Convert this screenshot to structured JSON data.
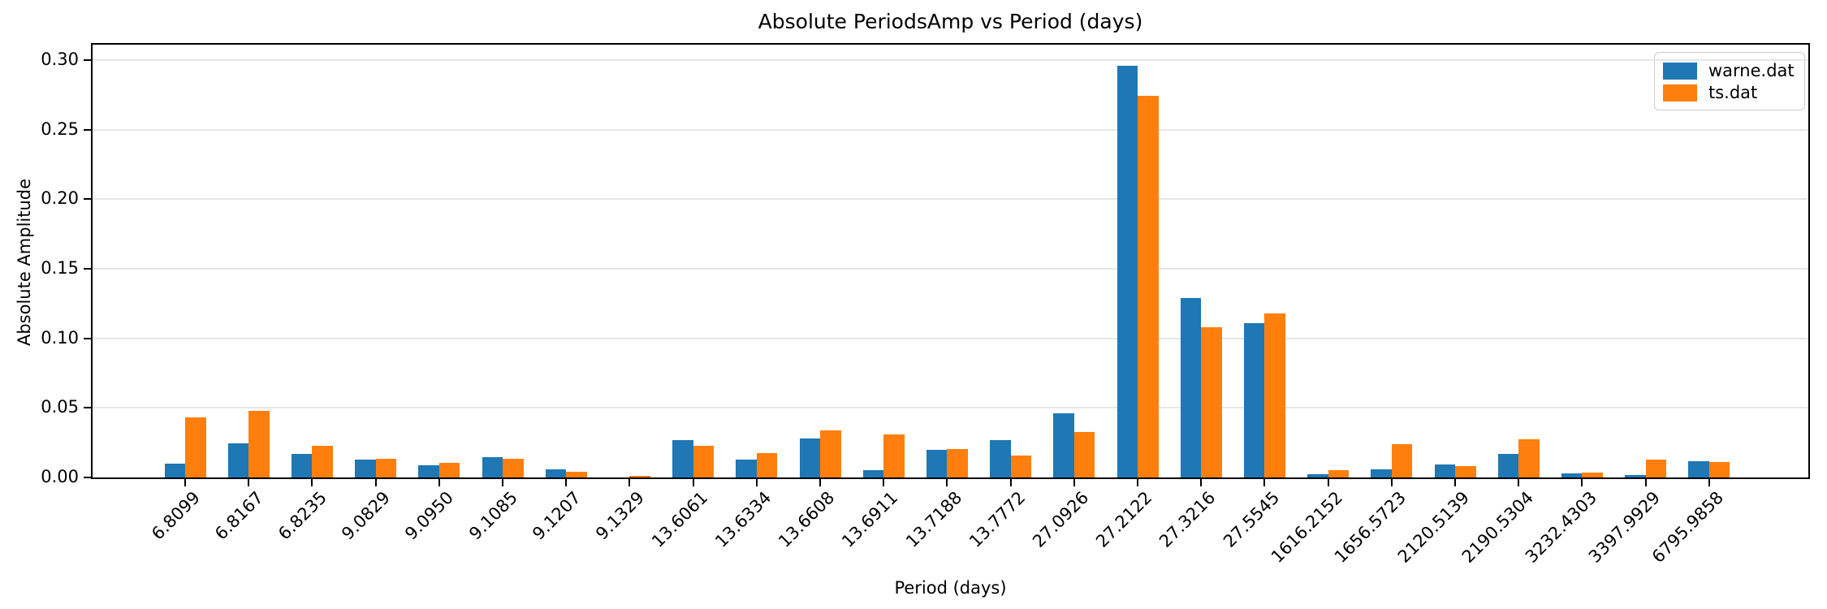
{
  "figure": {
    "background": "#ffffff",
    "spine_color": "#000000",
    "grid_color": "#e6e6e6"
  },
  "chart_data": {
    "type": "bar",
    "title": "Absolute PeriodsAmp vs Period (days)",
    "xlabel": "Period (days)",
    "ylabel": "Absolute Amplitude",
    "ylim": [
      0,
      0.311
    ],
    "yticks": [
      0.0,
      0.05,
      0.1,
      0.15,
      0.2,
      0.25,
      0.3
    ],
    "ytick_labels": [
      "0.00",
      "0.05",
      "0.10",
      "0.15",
      "0.20",
      "0.25",
      "0.30"
    ],
    "grid": "horizontal",
    "legend_position": "upper-right",
    "categories": [
      "6.8099",
      "6.8167",
      "6.8235",
      "9.0829",
      "9.0950",
      "9.1085",
      "9.1207",
      "9.1329",
      "13.6061",
      "13.6334",
      "13.6608",
      "13.6911",
      "13.7188",
      "13.7772",
      "27.0926",
      "27.2122",
      "27.3216",
      "27.5545",
      "1616.2152",
      "1656.5723",
      "2120.5139",
      "2190.5304",
      "3232.4303",
      "3397.9929",
      "6795.9858"
    ],
    "series": [
      {
        "name": "warne.dat",
        "color": "#1f77b4",
        "values": [
          0.01,
          0.0245,
          0.017,
          0.013,
          0.0085,
          0.0145,
          0.006,
          0.0002,
          0.027,
          0.013,
          0.028,
          0.0055,
          0.02,
          0.027,
          0.046,
          0.296,
          0.129,
          0.111,
          0.0025,
          0.006,
          0.0095,
          0.017,
          0.003,
          0.002,
          0.0115
        ]
      },
      {
        "name": "ts.dat",
        "color": "#ff7f0e",
        "values": [
          0.043,
          0.048,
          0.023,
          0.0135,
          0.0105,
          0.0135,
          0.004,
          0.001,
          0.0225,
          0.0175,
          0.034,
          0.031,
          0.0205,
          0.0155,
          0.0325,
          0.274,
          0.108,
          0.118,
          0.0055,
          0.024,
          0.008,
          0.0275,
          0.0035,
          0.013,
          0.011
        ]
      }
    ]
  }
}
